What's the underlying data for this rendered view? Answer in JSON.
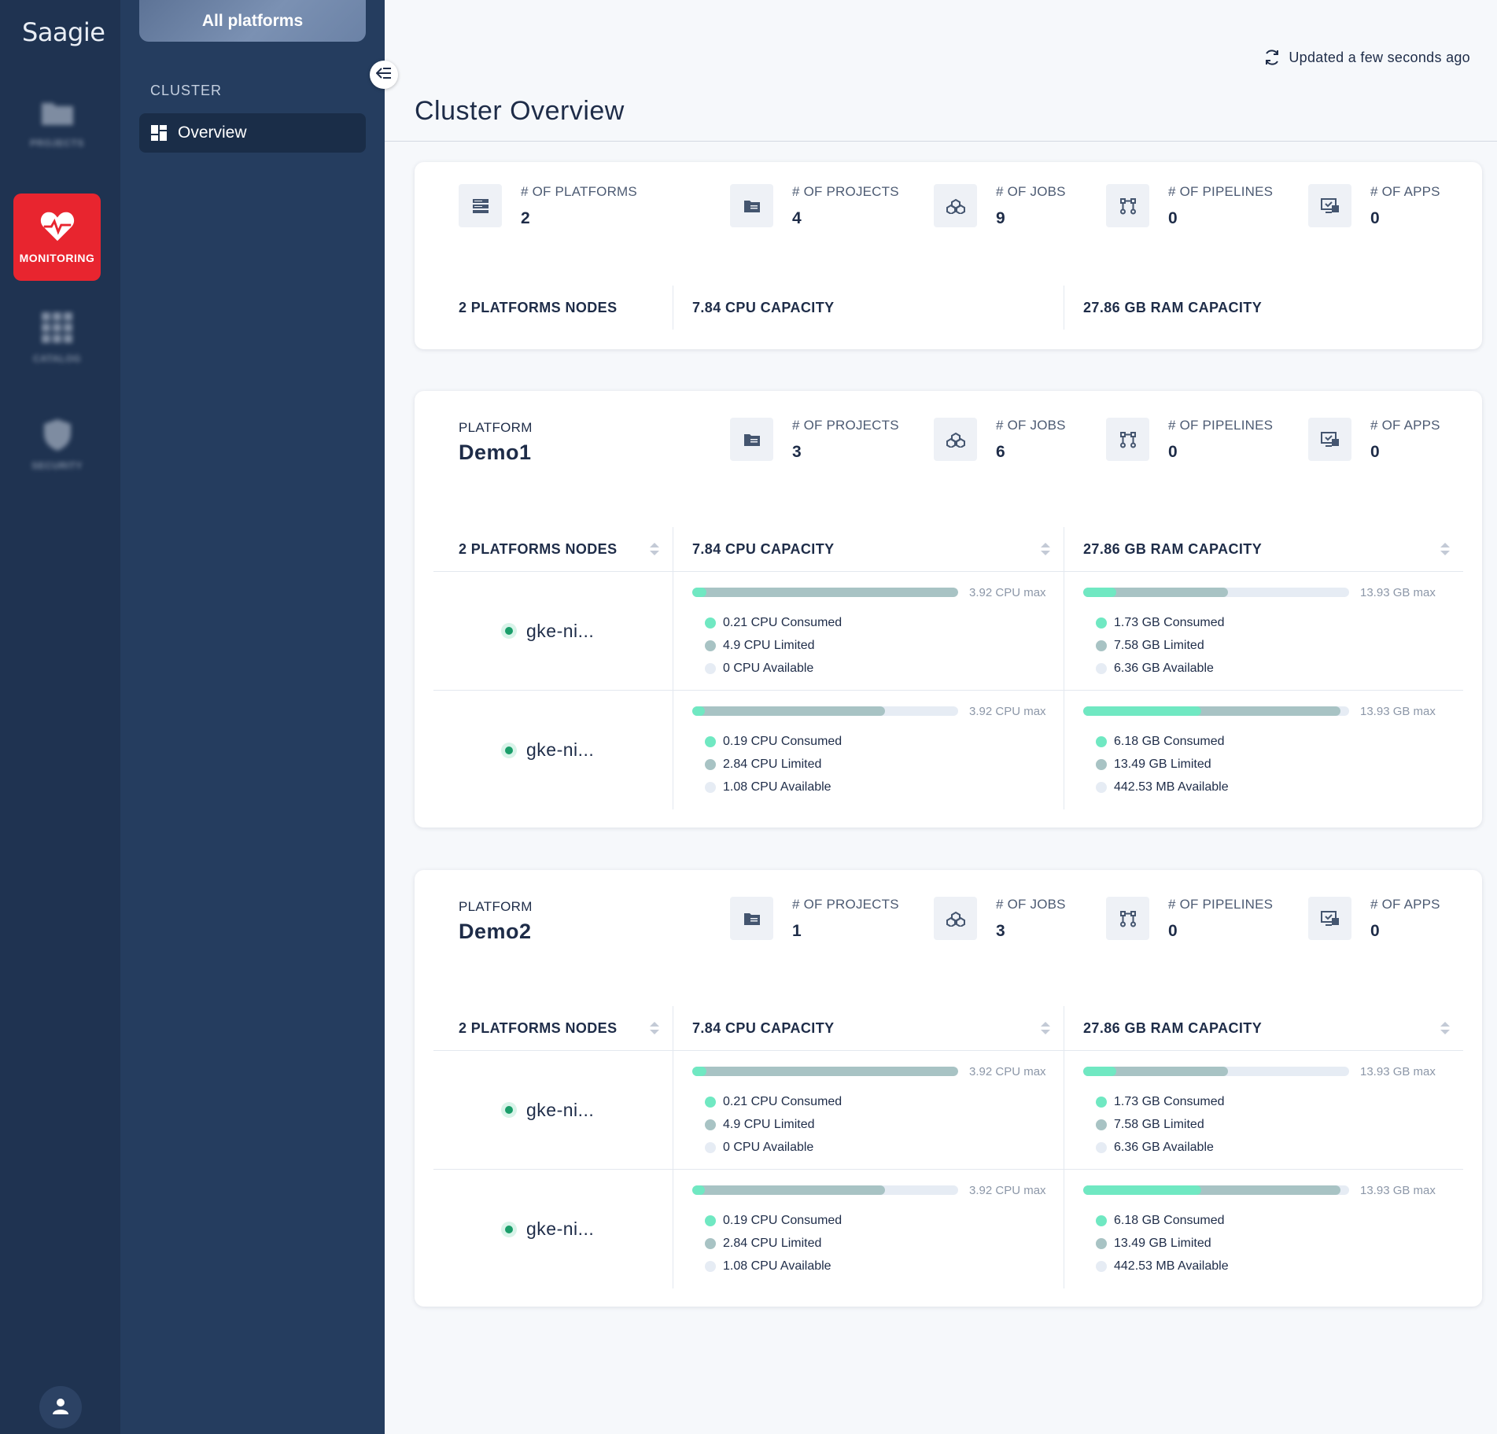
{
  "app": {
    "logo_text": "Saagie"
  },
  "rail": {
    "items": [
      {
        "label": "PROJECTS",
        "icon": "folder-icon"
      },
      {
        "label": "MONITORING",
        "icon": "heart-pulse-icon",
        "active": true
      },
      {
        "label": "CATALOG",
        "icon": "grid-icon"
      },
      {
        "label": "SECURITY",
        "icon": "shield-icon"
      }
    ],
    "user_icon": "user-icon"
  },
  "sidebar": {
    "platform_switch": "All platforms",
    "section": "CLUSTER",
    "nav": [
      {
        "label": "Overview",
        "icon": "dashboard-icon",
        "active": true
      }
    ]
  },
  "header": {
    "updated": "Updated a few seconds ago",
    "title": "Cluster Overview"
  },
  "summary": {
    "stats": [
      {
        "label": "# OF PLATFORMS",
        "value": "2",
        "icon": "server-icon"
      },
      {
        "label": "# OF PROJECTS",
        "value": "4",
        "icon": "folder-icon"
      },
      {
        "label": "# OF JOBS",
        "value": "9",
        "icon": "jobs-icon"
      },
      {
        "label": "# OF PIPELINES",
        "value": "0",
        "icon": "pipeline-icon"
      },
      {
        "label": "# OF APPS",
        "value": "0",
        "icon": "app-icon"
      }
    ],
    "capacity": {
      "nodes": "2 PLATFORMS NODES",
      "cpu": "7.84 CPU CAPACITY",
      "ram": "27.86 GB RAM CAPACITY"
    }
  },
  "platforms": [
    {
      "label": "PLATFORM",
      "name": "Demo1",
      "stats": [
        {
          "label": "# OF PROJECTS",
          "value": "3"
        },
        {
          "label": "# OF JOBS",
          "value": "6"
        },
        {
          "label": "# OF PIPELINES",
          "value": "0"
        },
        {
          "label": "# OF APPS",
          "value": "0"
        }
      ],
      "capacity": {
        "nodes": "2 PLATFORMS NODES",
        "cpu": "7.84 CPU CAPACITY",
        "ram": "27.86 GB RAM CAPACITY"
      },
      "nodes": [
        {
          "name": "gke-ni...",
          "cpu": {
            "max": "3.92 CPU max",
            "consumed": "0.21 CPU Consumed",
            "limited": "4.9 CPU Limited",
            "available": "0 CPU Available",
            "consumed_frac": 0.054,
            "limited_frac": 1.0
          },
          "ram": {
            "max": "13.93 GB max",
            "consumed": "1.73 GB Consumed",
            "limited": "7.58 GB Limited",
            "available": "6.36 GB Available",
            "consumed_frac": 0.124,
            "limited_frac": 0.544
          }
        },
        {
          "name": "gke-ni...",
          "cpu": {
            "max": "3.92 CPU max",
            "consumed": "0.19 CPU Consumed",
            "limited": "2.84 CPU Limited",
            "available": "1.08 CPU Available",
            "consumed_frac": 0.048,
            "limited_frac": 0.724
          },
          "ram": {
            "max": "13.93 GB max",
            "consumed": "6.18 GB Consumed",
            "limited": "13.49 GB Limited",
            "available": "442.53 MB Available",
            "consumed_frac": 0.444,
            "limited_frac": 0.968
          }
        }
      ]
    },
    {
      "label": "PLATFORM",
      "name": "Demo2",
      "stats": [
        {
          "label": "# OF PROJECTS",
          "value": "1"
        },
        {
          "label": "# OF JOBS",
          "value": "3"
        },
        {
          "label": "# OF PIPELINES",
          "value": "0"
        },
        {
          "label": "# OF APPS",
          "value": "0"
        }
      ],
      "capacity": {
        "nodes": "2 PLATFORMS NODES",
        "cpu": "7.84 CPU CAPACITY",
        "ram": "27.86 GB RAM CAPACITY"
      },
      "nodes": [
        {
          "name": "gke-ni...",
          "cpu": {
            "max": "3.92 CPU max",
            "consumed": "0.21 CPU Consumed",
            "limited": "4.9 CPU Limited",
            "available": "0 CPU Available",
            "consumed_frac": 0.054,
            "limited_frac": 1.0
          },
          "ram": {
            "max": "13.93 GB max",
            "consumed": "1.73 GB Consumed",
            "limited": "7.58 GB Limited",
            "available": "6.36 GB Available",
            "consumed_frac": 0.124,
            "limited_frac": 0.544
          }
        },
        {
          "name": "gke-ni...",
          "cpu": {
            "max": "3.92 CPU max",
            "consumed": "0.19 CPU Consumed",
            "limited": "2.84 CPU Limited",
            "available": "1.08 CPU Available",
            "consumed_frac": 0.048,
            "limited_frac": 0.724
          },
          "ram": {
            "max": "13.93 GB max",
            "consumed": "6.18 GB Consumed",
            "limited": "13.49 GB Limited",
            "available": "442.53 MB Available",
            "consumed_frac": 0.444,
            "limited_frac": 0.968
          }
        }
      ]
    }
  ],
  "colors": {
    "accent_red": "#e8252f",
    "consumed": "#70e8c2",
    "limited": "#a8c3c4",
    "available": "#e6ecf4",
    "rail": "#1f3351",
    "sidebar": "#253d5f"
  }
}
